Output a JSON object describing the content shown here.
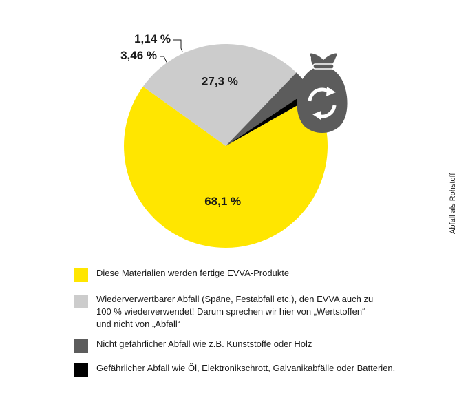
{
  "chart_data": {
    "type": "pie",
    "slices": [
      {
        "label": "68,1 %",
        "value": 68.1,
        "color": "#ffe600"
      },
      {
        "label": "27,3 %",
        "value": 27.3,
        "color": "#cccccc"
      },
      {
        "label": "3,46 %",
        "value": 3.46,
        "color": "#5c5c5c"
      },
      {
        "label": "1,14 %",
        "value": 1.14,
        "color": "#000000"
      }
    ],
    "legend": [
      {
        "text": "Diese Materialien werden fertige EVVA-Produkte",
        "color": "#ffe600"
      },
      {
        "text": "Wiederverwertbarer Abfall (Späne, Festabfall etc.), den EVVA auch zu\n100 % wiederverwendet! Darum sprechen wir hier von „Wertstoffen“\nund nicht von „Abfall“",
        "color": "#cccccc"
      },
      {
        "text": "Nicht gefährlicher Abfall wie z.B. Kunststoffe oder Holz",
        "color": "#5c5c5c"
      },
      {
        "text": "Gefährlicher Abfall wie Öl, Elektronikschrott, Galvanikabfälle oder Batterien.",
        "color": "#000000"
      }
    ],
    "side_label": "Abfall als Rohstoff",
    "icon": "recycling-bag-icon",
    "legend_placement": "bottom"
  }
}
